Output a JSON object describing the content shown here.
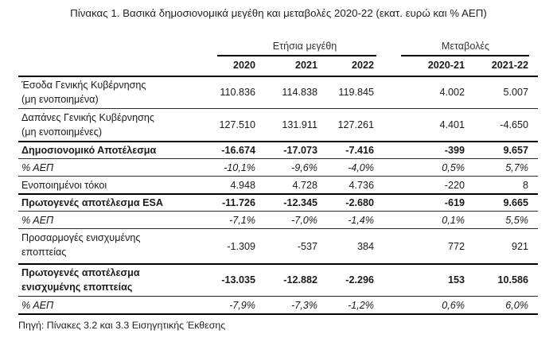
{
  "title": "Πίνακας 1. Βασικά δημοσιονομικά μεγέθη και μεταβολές 2020-22 (εκατ. ευρώ και % ΑΕΠ)",
  "header": {
    "group_annual": "Ετήσια μεγέθη",
    "group_changes": "Μεταβολές",
    "columns": [
      "2020",
      "2021",
      "2022",
      "2020-21",
      "2021-22"
    ]
  },
  "rows": [
    {
      "label_1": "Έσοδα Γενικής Κυβέρνησης",
      "label_2": "(μη ενοποιημένα)",
      "style": "normal",
      "values": [
        "110.836",
        "114.838",
        "119.845",
        "4.002",
        "5.007"
      ]
    },
    {
      "label_1": "Δαπάνες Γενικής Κυβέρνησης",
      "label_2": "(μη ενοποιημένες)",
      "style": "normal",
      "values": [
        "127.510",
        "131.911",
        "127.261",
        "4.401",
        "-4.650"
      ]
    },
    {
      "label_1": "Δημοσιονομικό Αποτέλεσμα",
      "style": "bold",
      "values": [
        "-16.674",
        "-17.073",
        "-7.416",
        "-399",
        "9.657"
      ]
    },
    {
      "label_1": "% ΑΕΠ",
      "style": "italic",
      "values": [
        "-10,1%",
        "-9,6%",
        "-4,0%",
        "0,5%",
        "5,7%"
      ]
    },
    {
      "label_1": "Ενοποιημένοι τόκοι",
      "style": "normal",
      "values": [
        "4.948",
        "4.728",
        "4.736",
        "-220",
        "8"
      ]
    },
    {
      "label_1": "Πρωτογενές αποτέλεσμα ESA",
      "style": "bold",
      "values": [
        "-11.726",
        "-12.345",
        "-2.680",
        "-619",
        "9.665"
      ]
    },
    {
      "label_1": "% ΑΕΠ",
      "style": "italic",
      "values": [
        "-7,1%",
        "-7,0%",
        "-1,4%",
        "0,1%",
        "5,5%"
      ]
    },
    {
      "label_1": "Προσαρμογές ενισχυμένης",
      "label_2": "εποπτείας",
      "style": "normal",
      "values": [
        "-1.309",
        "-537",
        "384",
        "772",
        "921"
      ]
    },
    {
      "label_1": "Πρωτογενές αποτέλεσμα",
      "label_2": "ενισχυμένης εποπτείας",
      "style": "bold",
      "values": [
        "-13.035",
        "-12.882",
        "-2.296",
        "153",
        "10.586"
      ]
    },
    {
      "label_1": "% ΑΕΠ",
      "style": "italic",
      "values": [
        "-7,9%",
        "-7,3%",
        "-1,2%",
        "0,6%",
        "6,0%"
      ]
    }
  ],
  "source": "Πηγή: Πίνακες 3.2 και 3.3 Εισηγητικής Έκθεσης"
}
